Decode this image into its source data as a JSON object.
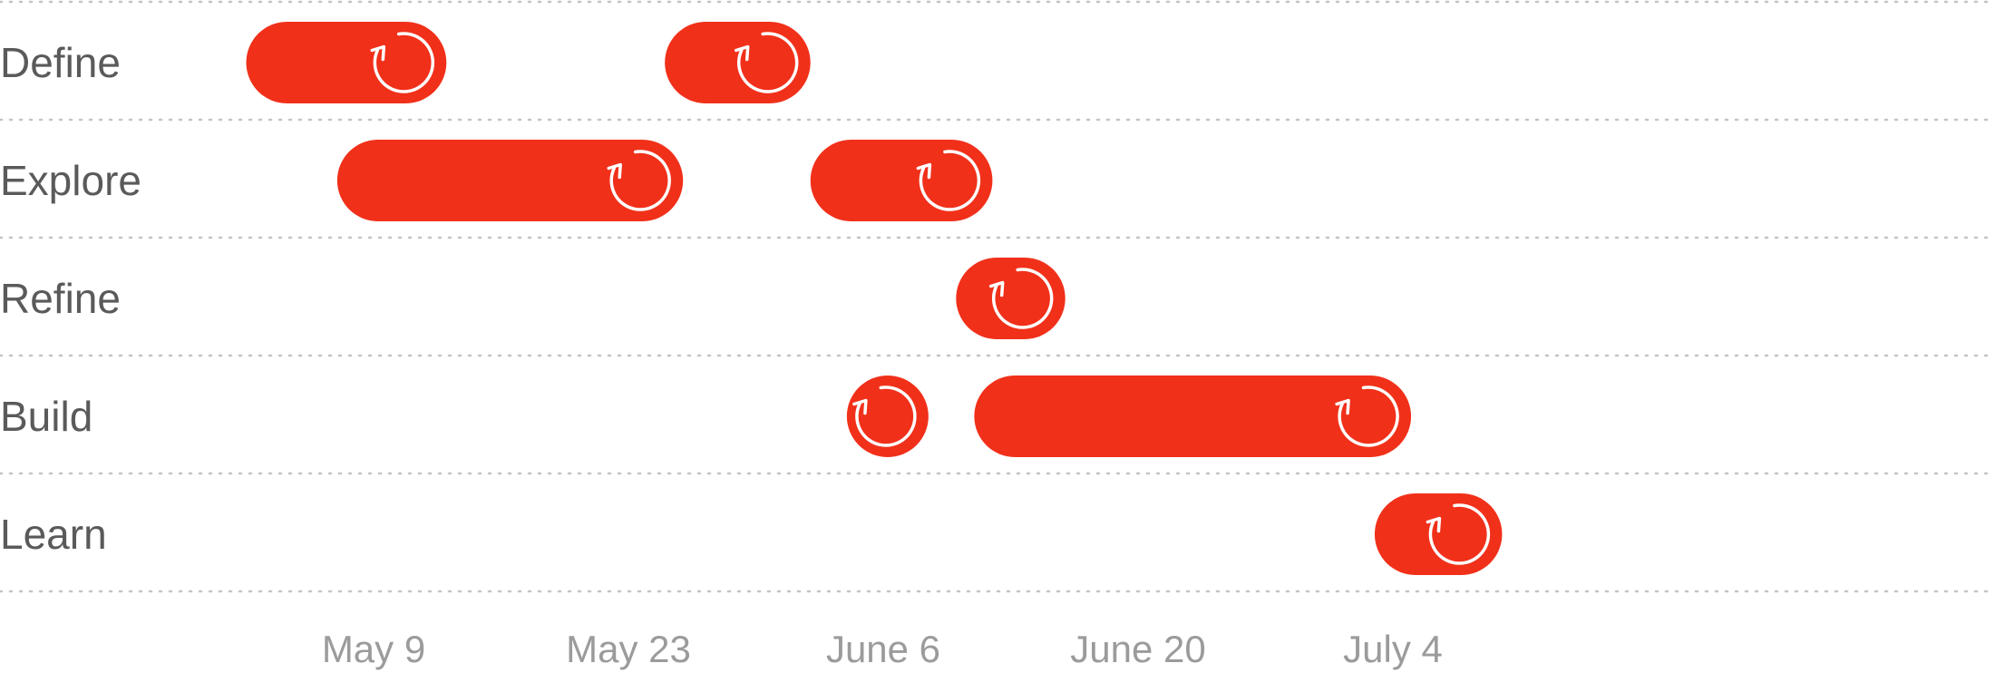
{
  "chart_data": {
    "type": "gantt",
    "title": "",
    "xlabel": "",
    "ylabel": "",
    "bar_color": "#f1301a",
    "icon": "refresh-icon",
    "grid": true,
    "x_ticks": [
      {
        "label": "May 9",
        "date": "2016-05-09"
      },
      {
        "label": "May 23",
        "date": "2016-05-23"
      },
      {
        "label": "June 6",
        "date": "2016-06-06"
      },
      {
        "label": "June 20",
        "date": "2016-06-20"
      },
      {
        "label": "July 4",
        "date": "2016-07-04"
      }
    ],
    "x_range": [
      "2016-04-28",
      "2016-07-11"
    ],
    "rows": [
      {
        "label": "Define",
        "tasks": [
          {
            "start": "2016-05-02",
            "end": "2016-05-13"
          },
          {
            "start": "2016-05-25",
            "end": "2016-06-02"
          }
        ]
      },
      {
        "label": "Explore",
        "tasks": [
          {
            "start": "2016-05-07",
            "end": "2016-05-26"
          },
          {
            "start": "2016-06-02",
            "end": "2016-06-12"
          }
        ]
      },
      {
        "label": "Refine",
        "tasks": [
          {
            "start": "2016-06-10",
            "end": "2016-06-16"
          }
        ]
      },
      {
        "label": "Build",
        "tasks": [
          {
            "start": "2016-06-04",
            "end": "2016-06-08"
          },
          {
            "start": "2016-06-11",
            "end": "2016-07-05"
          }
        ]
      },
      {
        "label": "Learn",
        "tasks": [
          {
            "start": "2016-07-03",
            "end": "2016-07-10"
          }
        ]
      }
    ]
  }
}
